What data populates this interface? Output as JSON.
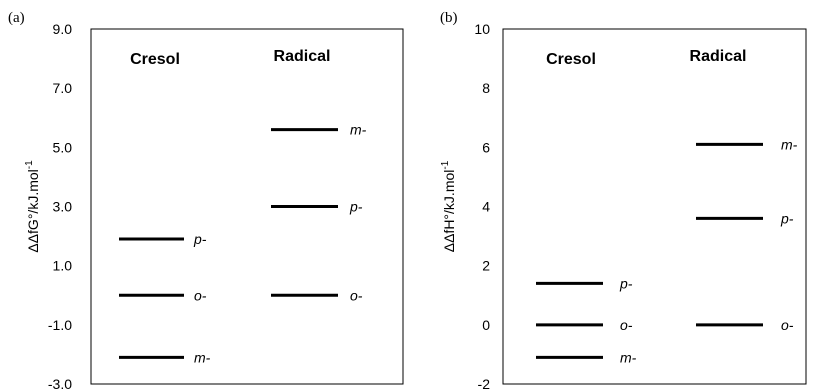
{
  "chart_data": [
    {
      "type": "level-diagram",
      "panel_label": "(a)",
      "ylabel": "ΔΔfG°/kJ.mol-1",
      "ylim": [
        -3.0,
        9.0
      ],
      "yticks": [
        "-3.0",
        "-1.0",
        "1.0",
        "3.0",
        "5.0",
        "7.0",
        "9.0"
      ],
      "grid": false,
      "groups": [
        {
          "name": "Cresol",
          "levels": [
            {
              "label": "p-",
              "value": 1.9
            },
            {
              "label": "o-",
              "value": 0.0
            },
            {
              "label": "m-",
              "value": -2.1
            }
          ]
        },
        {
          "name": "Radical",
          "levels": [
            {
              "label": "m-",
              "value": 5.6
            },
            {
              "label": "p-",
              "value": 3.0
            },
            {
              "label": "o-",
              "value": 0.0
            }
          ]
        }
      ]
    },
    {
      "type": "level-diagram",
      "panel_label": "(b)",
      "ylabel": "ΔΔfH°/kJ.mol-1",
      "ylim": [
        -2,
        10
      ],
      "yticks": [
        "-2",
        "0",
        "2",
        "4",
        "6",
        "8",
        "10"
      ],
      "grid": false,
      "groups": [
        {
          "name": "Cresol",
          "levels": [
            {
              "label": "p-",
              "value": 1.4
            },
            {
              "label": "o-",
              "value": 0.0
            },
            {
              "label": "m-",
              "value": -1.1
            }
          ]
        },
        {
          "name": "Radical",
          "levels": [
            {
              "label": "m-",
              "value": 6.1
            },
            {
              "label": "p-",
              "value": 3.6
            },
            {
              "label": "o-",
              "value": 0.0
            }
          ]
        }
      ]
    }
  ]
}
